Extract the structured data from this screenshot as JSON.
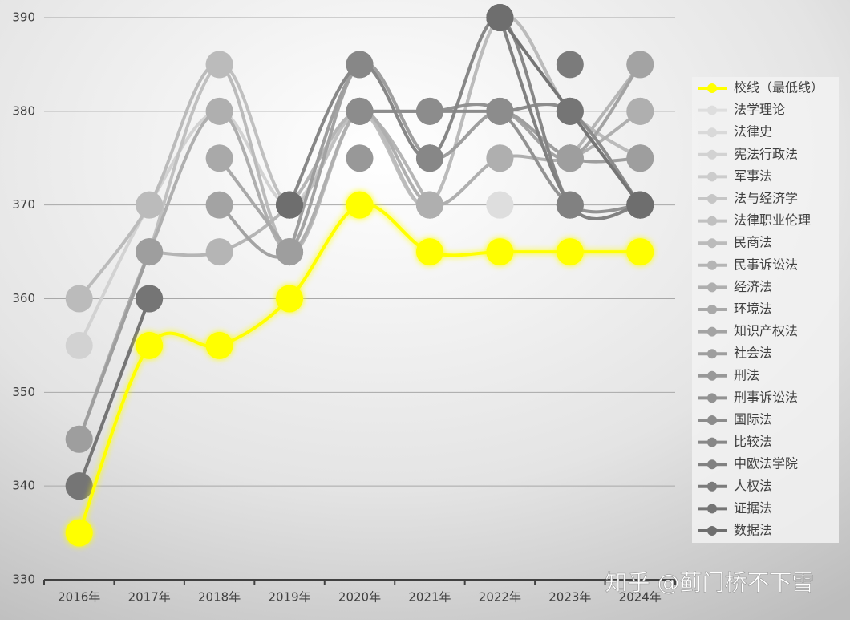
{
  "chart_data": {
    "type": "line",
    "categories": [
      "2016年",
      "2017年",
      "2018年",
      "2019年",
      "2020年",
      "2021年",
      "2022年",
      "2023年",
      "2024年"
    ],
    "ylim": [
      330,
      390
    ],
    "yticks": [
      330,
      340,
      350,
      360,
      370,
      380,
      390
    ],
    "grid": true,
    "legend": "right",
    "watermark": "知乎 @蓟门桥不下雪",
    "series": [
      {
        "name": "校线（最低线）",
        "color": "#ffff00",
        "values": [
          335,
          355,
          355,
          360,
          370,
          365,
          365,
          365,
          365
        ]
      },
      {
        "name": "法学理论",
        "color": "#dedede",
        "values": [
          null,
          null,
          null,
          null,
          null,
          null,
          370,
          null,
          null
        ]
      },
      {
        "name": "法律史",
        "color": "#d9d9d9",
        "values": [
          null,
          null,
          null,
          null,
          null,
          null,
          370,
          null,
          null
        ]
      },
      {
        "name": "宪法行政法",
        "color": "#d2d2d2",
        "values": [
          355,
          370,
          380,
          370,
          380,
          370,
          390,
          380,
          375
        ]
      },
      {
        "name": "军事法",
        "color": "#cccccc",
        "values": [
          null,
          null,
          null,
          null,
          null,
          null,
          null,
          null,
          380
        ]
      },
      {
        "name": "法与经济学",
        "color": "#c6c6c6",
        "values": [
          null,
          null,
          null,
          null,
          null,
          null,
          375,
          null,
          380
        ]
      },
      {
        "name": "法律职业伦理",
        "color": "#c0c0c0",
        "values": [
          null,
          365,
          385,
          370,
          380,
          370,
          390,
          380,
          375
        ]
      },
      {
        "name": "民商法",
        "color": "#bbbbbb",
        "values": [
          360,
          370,
          385,
          365,
          380,
          370,
          390,
          380,
          375
        ]
      },
      {
        "name": "民事诉讼法",
        "color": "#b5b5b5",
        "values": [
          null,
          365,
          365,
          370,
          380,
          370,
          null,
          375,
          385
        ]
      },
      {
        "name": "经济法",
        "color": "#afafaf",
        "values": [
          345,
          365,
          380,
          365,
          380,
          370,
          375,
          375,
          380
        ]
      },
      {
        "name": "环境法",
        "color": "#a9a9a9",
        "values": [
          null,
          null,
          375,
          365,
          null,
          null,
          null,
          null,
          null
        ]
      },
      {
        "name": "知识产权法",
        "color": "#a3a3a3",
        "values": [
          null,
          null,
          370,
          365,
          385,
          375,
          380,
          375,
          385
        ]
      },
      {
        "name": "社会法",
        "color": "#9e9e9e",
        "values": [
          345,
          365,
          null,
          365,
          385,
          375,
          380,
          375,
          375
        ]
      },
      {
        "name": "刑法",
        "color": "#989898",
        "values": [
          null,
          null,
          null,
          null,
          375,
          null,
          null,
          380,
          null
        ]
      },
      {
        "name": "刑事诉讼法",
        "color": "#929292",
        "values": [
          null,
          null,
          null,
          null,
          380,
          380,
          380,
          370,
          370
        ]
      },
      {
        "name": "国际法",
        "color": "#8c8c8c",
        "values": [
          null,
          null,
          null,
          null,
          380,
          380,
          380,
          380,
          370
        ]
      },
      {
        "name": "比较法",
        "color": "#878787",
        "values": [
          340,
          360,
          null,
          370,
          385,
          375,
          390,
          370,
          370
        ]
      },
      {
        "name": "中欧法学院",
        "color": "#818181",
        "values": [
          null,
          null,
          null,
          null,
          null,
          null,
          390,
          370,
          370
        ]
      },
      {
        "name": "人权法",
        "color": "#7b7b7b",
        "values": [
          null,
          null,
          null,
          null,
          null,
          null,
          null,
          385,
          null
        ]
      },
      {
        "name": "证据法",
        "color": "#757575",
        "values": [
          340,
          360,
          null,
          370,
          null,
          null,
          390,
          380,
          370
        ]
      },
      {
        "name": "数据法",
        "color": "#6e6e6e",
        "values": [
          null,
          null,
          null,
          370,
          null,
          null,
          390,
          null,
          370
        ]
      }
    ]
  }
}
